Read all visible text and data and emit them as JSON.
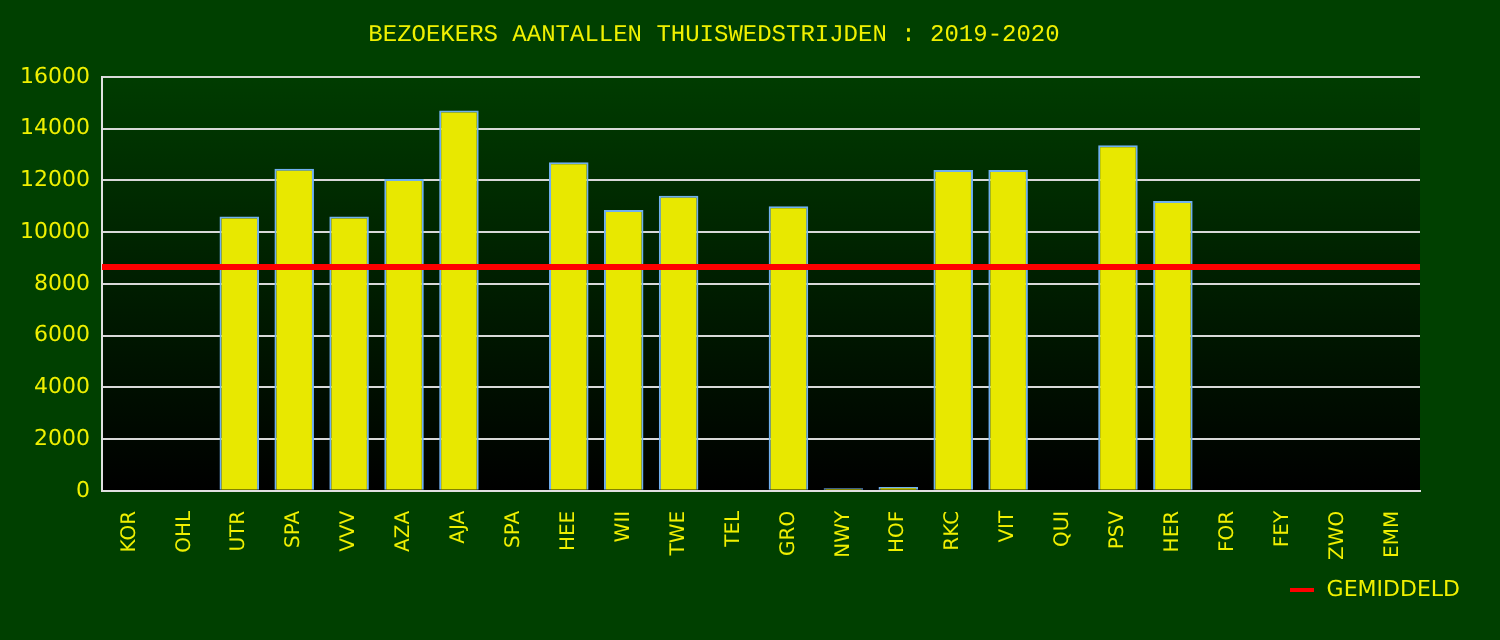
{
  "chart_data": {
    "type": "bar",
    "title": "BEZOEKERS AANTALLEN THUISWEDSTRIJDEN : 2019-2020",
    "categories": [
      "KOR",
      "OHL",
      "UTR",
      "SPA",
      "VVV",
      "AZA",
      "AJA",
      "SPA",
      "HEE",
      "WII",
      "TWE",
      "TEL",
      "GRO",
      "NWY",
      "HOF",
      "RKC",
      "VIT",
      "QUI",
      "PSV",
      "HER",
      "FOR",
      "FEY",
      "ZWO",
      "EMM"
    ],
    "values": [
      null,
      null,
      10600,
      12450,
      10600,
      12050,
      14700,
      null,
      12700,
      10850,
      11400,
      null,
      11000,
      100,
      150,
      12400,
      12400,
      null,
      13350,
      11200,
      null,
      null,
      null,
      null
    ],
    "color": "#e8e800",
    "ylim": [
      0,
      16000
    ],
    "yticks": [
      0,
      2000,
      4000,
      6000,
      8000,
      10000,
      12000,
      14000,
      16000
    ],
    "grid": "y",
    "ref_lines": [
      {
        "axis": "y",
        "value": 8650,
        "label": "GEMIDDELD",
        "color": "#ff0000"
      }
    ],
    "legend": "bottom right"
  }
}
